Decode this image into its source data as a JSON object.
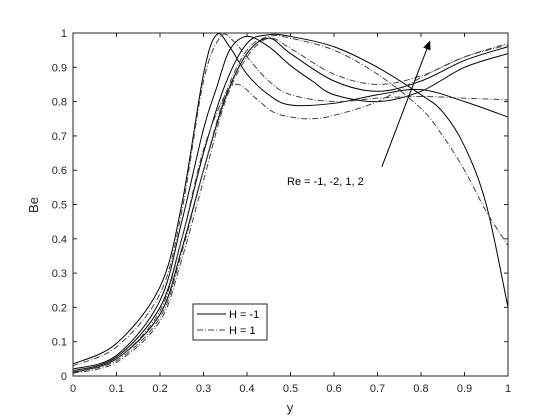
{
  "chart_data": {
    "type": "line",
    "xlabel": "y",
    "ylabel": "Be",
    "xlim": [
      0,
      1
    ],
    "ylim": [
      0,
      1
    ],
    "xticks": [
      0,
      0.1,
      0.2,
      0.3,
      0.4,
      0.5,
      0.6,
      0.7,
      0.8,
      0.9,
      1
    ],
    "yticks": [
      0,
      0.1,
      0.2,
      0.3,
      0.4,
      0.5,
      0.6,
      0.7,
      0.8,
      0.9,
      1
    ],
    "xtick_labels": [
      "0",
      "0.1",
      "0.2",
      "0.3",
      "0.4",
      "0.5",
      "0.6",
      "0.7",
      "0.8",
      "0.9",
      "1"
    ],
    "ytick_labels": [
      "0",
      "0.1",
      "0.2",
      "0.3",
      "0.4",
      "0.5",
      "0.6",
      "0.7",
      "0.8",
      "0.9",
      "1"
    ],
    "grid": false,
    "legend": {
      "placement": "lower-left",
      "entries": [
        {
          "label": "H = -1",
          "style": "solid"
        },
        {
          "label": "H = 1",
          "style": "dashdot"
        }
      ]
    },
    "annotation": {
      "text": "Re = -1, -2, 1, 2",
      "arrow_from": [
        0.71,
        0.61
      ],
      "arrow_to": [
        0.82,
        0.975
      ]
    },
    "series": [
      {
        "style": "solid",
        "color": "#000000",
        "x": [
          0,
          0.1,
          0.2,
          0.25,
          0.3,
          0.33,
          0.36,
          0.4,
          0.45,
          0.5,
          0.6,
          0.7,
          0.8,
          0.9,
          1.0
        ],
        "y": [
          0.035,
          0.095,
          0.26,
          0.5,
          0.88,
          0.995,
          0.96,
          0.88,
          0.82,
          0.79,
          0.795,
          0.82,
          0.835,
          0.8,
          0.755
        ]
      },
      {
        "style": "solid",
        "color": "#000000",
        "x": [
          0,
          0.1,
          0.2,
          0.25,
          0.3,
          0.33,
          0.36,
          0.4,
          0.45,
          0.5,
          0.55,
          0.6,
          0.7,
          0.8,
          0.9,
          1.0
        ],
        "y": [
          0.02,
          0.06,
          0.22,
          0.45,
          0.72,
          0.84,
          0.95,
          0.99,
          0.96,
          0.905,
          0.86,
          0.82,
          0.8,
          0.83,
          0.9,
          0.94
        ]
      },
      {
        "style": "solid",
        "color": "#000000",
        "x": [
          0,
          0.1,
          0.2,
          0.25,
          0.3,
          0.35,
          0.4,
          0.45,
          0.5,
          0.6,
          0.7,
          0.8,
          0.85,
          0.9,
          0.95,
          1.0
        ],
        "y": [
          0.015,
          0.055,
          0.2,
          0.4,
          0.65,
          0.85,
          0.97,
          0.995,
          0.99,
          0.96,
          0.9,
          0.82,
          0.77,
          0.67,
          0.5,
          0.2
        ]
      },
      {
        "style": "solid",
        "color": "#000000",
        "x": [
          0,
          0.1,
          0.2,
          0.25,
          0.3,
          0.35,
          0.4,
          0.45,
          0.5,
          0.6,
          0.7,
          0.8,
          0.9,
          1.0
        ],
        "y": [
          0.01,
          0.05,
          0.18,
          0.37,
          0.6,
          0.81,
          0.94,
          0.985,
          0.94,
          0.86,
          0.83,
          0.86,
          0.92,
          0.96
        ]
      },
      {
        "style": "dashdot",
        "color": "#444444",
        "x": [
          0,
          0.1,
          0.2,
          0.25,
          0.3,
          0.34,
          0.37,
          0.4,
          0.45,
          0.5,
          0.6,
          0.7,
          0.8,
          0.9,
          1.0
        ],
        "y": [
          0.03,
          0.085,
          0.24,
          0.48,
          0.86,
          0.99,
          0.975,
          0.93,
          0.86,
          0.82,
          0.8,
          0.81,
          0.815,
          0.81,
          0.805
        ]
      },
      {
        "style": "dashdot",
        "color": "#444444",
        "x": [
          0,
          0.1,
          0.2,
          0.25,
          0.3,
          0.35,
          0.38,
          0.42,
          0.46,
          0.5,
          0.55,
          0.6,
          0.7,
          0.8,
          0.9,
          1.0
        ],
        "y": [
          0.015,
          0.05,
          0.19,
          0.4,
          0.66,
          0.82,
          0.85,
          0.81,
          0.77,
          0.755,
          0.75,
          0.76,
          0.8,
          0.87,
          0.93,
          0.965
        ]
      },
      {
        "style": "dashdot",
        "color": "#444444",
        "x": [
          0,
          0.1,
          0.2,
          0.25,
          0.3,
          0.35,
          0.4,
          0.45,
          0.5,
          0.6,
          0.7,
          0.8,
          0.85,
          0.9,
          0.95,
          1.0
        ],
        "y": [
          0.012,
          0.045,
          0.17,
          0.36,
          0.6,
          0.82,
          0.95,
          0.99,
          0.985,
          0.95,
          0.88,
          0.78,
          0.7,
          0.6,
          0.48,
          0.38
        ]
      },
      {
        "style": "dashdot",
        "color": "#444444",
        "x": [
          0,
          0.1,
          0.2,
          0.25,
          0.3,
          0.35,
          0.4,
          0.45,
          0.5,
          0.6,
          0.7,
          0.8,
          0.9,
          1.0
        ],
        "y": [
          0.008,
          0.04,
          0.16,
          0.34,
          0.57,
          0.8,
          0.93,
          0.985,
          0.955,
          0.88,
          0.85,
          0.875,
          0.93,
          0.97
        ]
      }
    ]
  }
}
